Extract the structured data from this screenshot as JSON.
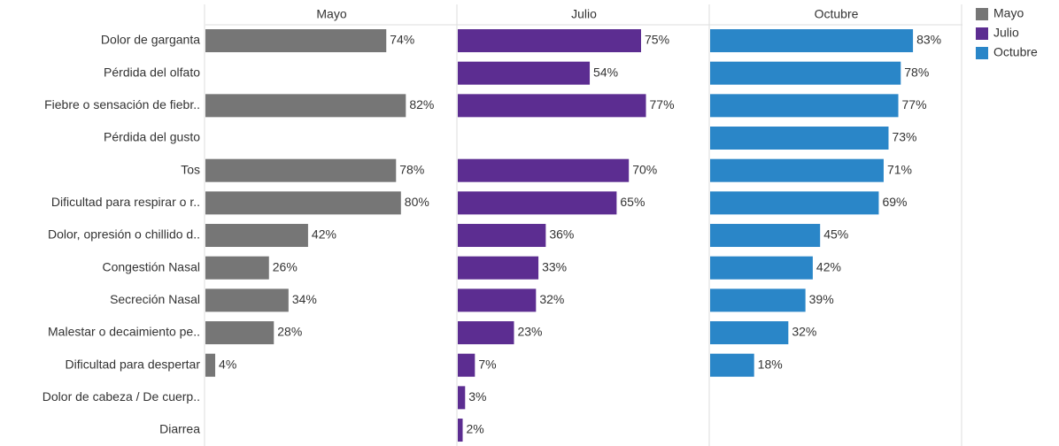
{
  "chart_data": {
    "type": "bar",
    "orientation": "horizontal",
    "layout": "panels",
    "categories": [
      "Dolor de garganta",
      "Pérdida del olfato",
      "Fiebre o sensación de fiebr..",
      "Pérdida del gusto",
      "Tos",
      "Dificultad para respirar o r..",
      "Dolor, opresión o chillido d..",
      "Congestión Nasal",
      "Secreción Nasal",
      "Malestar o decaimiento pe..",
      "Dificultad para despertar",
      "Dolor de cabeza / De cuerp..",
      "Diarrea"
    ],
    "series": [
      {
        "name": "Mayo",
        "color": "#767676",
        "values": [
          74,
          null,
          82,
          null,
          78,
          80,
          42,
          26,
          34,
          28,
          4,
          null,
          null
        ],
        "value_labels": [
          "74%",
          null,
          "82%",
          null,
          "78%",
          "80%",
          "42%",
          "26%",
          "34%",
          "28%",
          "4%",
          null,
          null
        ]
      },
      {
        "name": "Julio",
        "color": "#5c2d91",
        "values": [
          75,
          54,
          77,
          null,
          70,
          65,
          36,
          33,
          32,
          23,
          7,
          3,
          2
        ],
        "value_labels": [
          "75%",
          "54%",
          "77%",
          null,
          "70%",
          "65%",
          "36%",
          "33%",
          "32%",
          "23%",
          "7%",
          "3%",
          "2%"
        ]
      },
      {
        "name": "Octubre",
        "color": "#2a86c8",
        "values": [
          83,
          78,
          77,
          73,
          71,
          69,
          45,
          42,
          39,
          32,
          18,
          null,
          null
        ],
        "value_labels": [
          "83%",
          "78%",
          "77%",
          "73%",
          "71%",
          "69%",
          "45%",
          "42%",
          "39%",
          "32%",
          "18%",
          null,
          null
        ]
      }
    ],
    "xlim": [
      0,
      100
    ],
    "legend": "top-right"
  }
}
